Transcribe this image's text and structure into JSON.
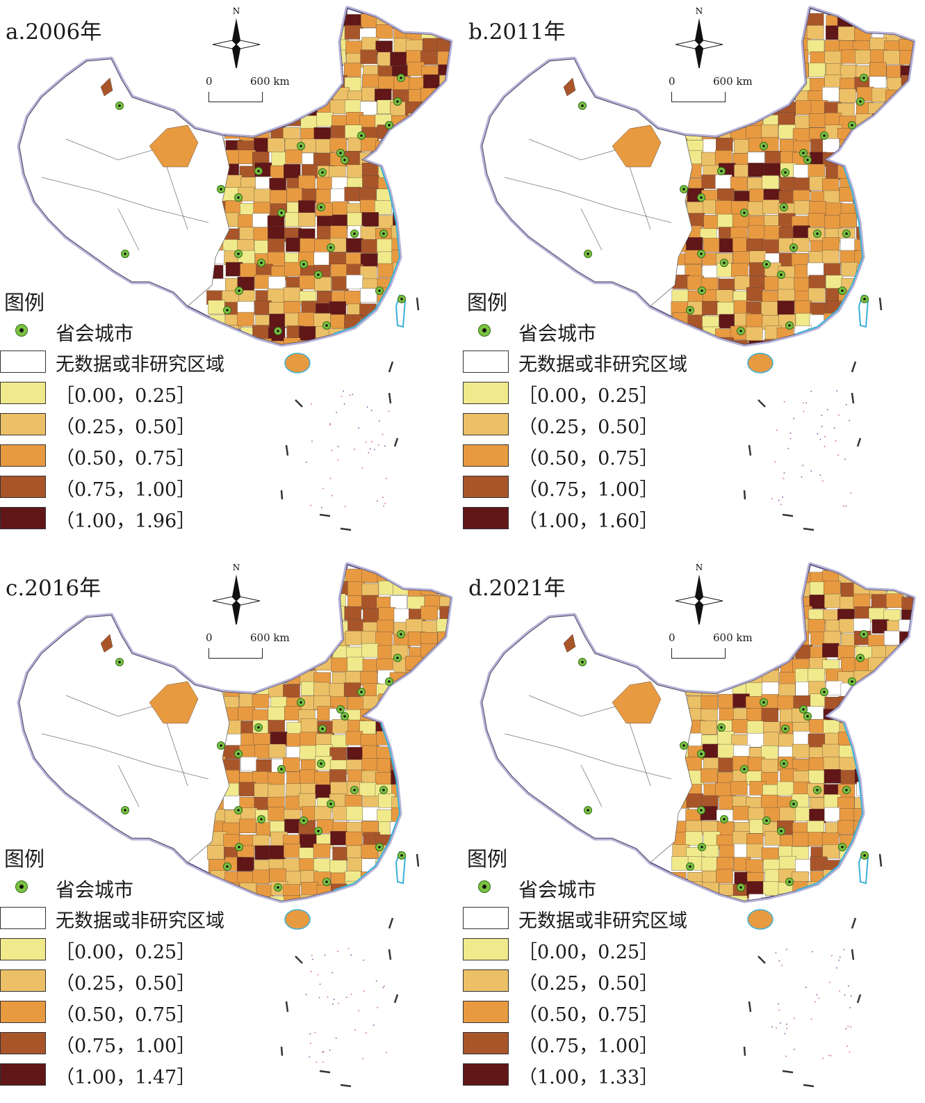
{
  "legend": {
    "title": "图例",
    "capital": "省会城市",
    "no_data": "无数据或非研究区域",
    "classes": [
      "［0.00，0.25］",
      "（0.25，0.50］",
      "（0.50，0.75］",
      "（0.75，1.00］"
    ]
  },
  "compass": {
    "north": "N"
  },
  "scalebar": {
    "zero": "0",
    "km": "600 km"
  },
  "colors": {
    "no_data": "#ffffff",
    "c1": "#f1ea8c",
    "c2": "#ecc066",
    "c3": "#e89a41",
    "c4": "#a9552a",
    "c5": "#611617",
    "border": "#b6b2d6",
    "capital": "#7cc242"
  },
  "panels": [
    {
      "id": "a",
      "title": "a.2006年",
      "top_class": "（1.00，1.96］"
    },
    {
      "id": "b",
      "title": "b.2011年",
      "top_class": "（1.00，1.60］"
    },
    {
      "id": "c",
      "title": "c.2016年",
      "top_class": "（1.00，1.47］"
    },
    {
      "id": "d",
      "title": "d.2021年",
      "top_class": "（1.00，1.33］"
    }
  ]
}
